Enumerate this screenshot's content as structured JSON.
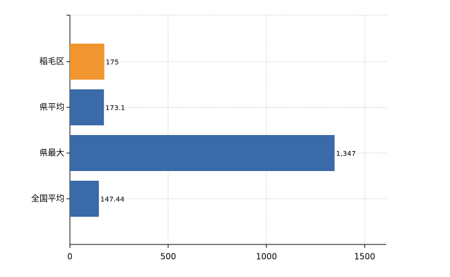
{
  "chart_data": {
    "type": "bar",
    "orientation": "horizontal",
    "categories": [
      "稲毛区",
      "県平均",
      "県最大",
      "全国平均"
    ],
    "values": [
      175,
      173.1,
      1347,
      147.44
    ],
    "value_labels": [
      "175",
      "173.1",
      "1,347",
      "147.44"
    ],
    "colors": [
      "#f0952f",
      "#3a6aa8",
      "#3a6aa8",
      "#3a6aa8"
    ],
    "xlim": [
      0,
      1610
    ],
    "xticks": [
      0,
      500,
      1000,
      1500
    ],
    "grid": true
  }
}
